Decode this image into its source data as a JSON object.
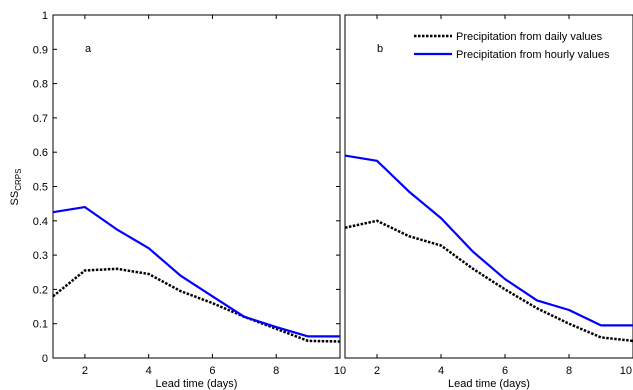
{
  "figure": {
    "ylabel_main": "SS",
    "ylabel_sub": "CRPS"
  },
  "legend": {
    "placement": "top-right of panel b",
    "items": [
      {
        "label": "Precipitation from daily values",
        "style": "dotted",
        "color": "#000000"
      },
      {
        "label": "Precipitation from hourly values",
        "style": "solid",
        "color": "#0000ff"
      }
    ]
  },
  "chart_data": [
    {
      "type": "line",
      "panel_label": "a",
      "xlabel": "Lead time (days)",
      "xlim": [
        1,
        10
      ],
      "ylim": [
        0,
        1
      ],
      "xticks": [
        "2",
        "4",
        "6",
        "8",
        "10"
      ],
      "yticks": [
        "0",
        "0.1",
        "0.2",
        "0.3",
        "0.4",
        "0.5",
        "0.6",
        "0.7",
        "0.8",
        "0.9",
        "1"
      ],
      "grid": false,
      "x": [
        1,
        2,
        3,
        4,
        5,
        6,
        7,
        8,
        9,
        10
      ],
      "series": [
        {
          "values": [
            0.18,
            0.255,
            0.26,
            0.245,
            0.195,
            0.16,
            0.12,
            0.085,
            0.05,
            0.048
          ],
          "color": "#000000",
          "style": "dotted"
        },
        {
          "values": [
            0.425,
            0.44,
            0.375,
            0.32,
            0.24,
            0.18,
            0.12,
            0.09,
            0.063,
            0.063
          ],
          "color": "#0000ff",
          "style": "solid"
        }
      ]
    },
    {
      "type": "line",
      "panel_label": "b",
      "xlabel": "Lead time (days)",
      "xlim": [
        1,
        10
      ],
      "ylim": [
        0,
        1
      ],
      "xticks": [
        "2",
        "4",
        "6",
        "8",
        "10"
      ],
      "yticks": [],
      "grid": false,
      "x": [
        1,
        2,
        3,
        4,
        5,
        6,
        7,
        8,
        9,
        10
      ],
      "series": [
        {
          "values": [
            0.38,
            0.4,
            0.355,
            0.328,
            0.26,
            0.2,
            0.145,
            0.1,
            0.06,
            0.05
          ],
          "color": "#000000",
          "style": "dotted"
        },
        {
          "values": [
            0.59,
            0.575,
            0.485,
            0.408,
            0.31,
            0.23,
            0.168,
            0.14,
            0.095,
            0.095
          ],
          "color": "#0000ff",
          "style": "solid"
        }
      ]
    }
  ]
}
